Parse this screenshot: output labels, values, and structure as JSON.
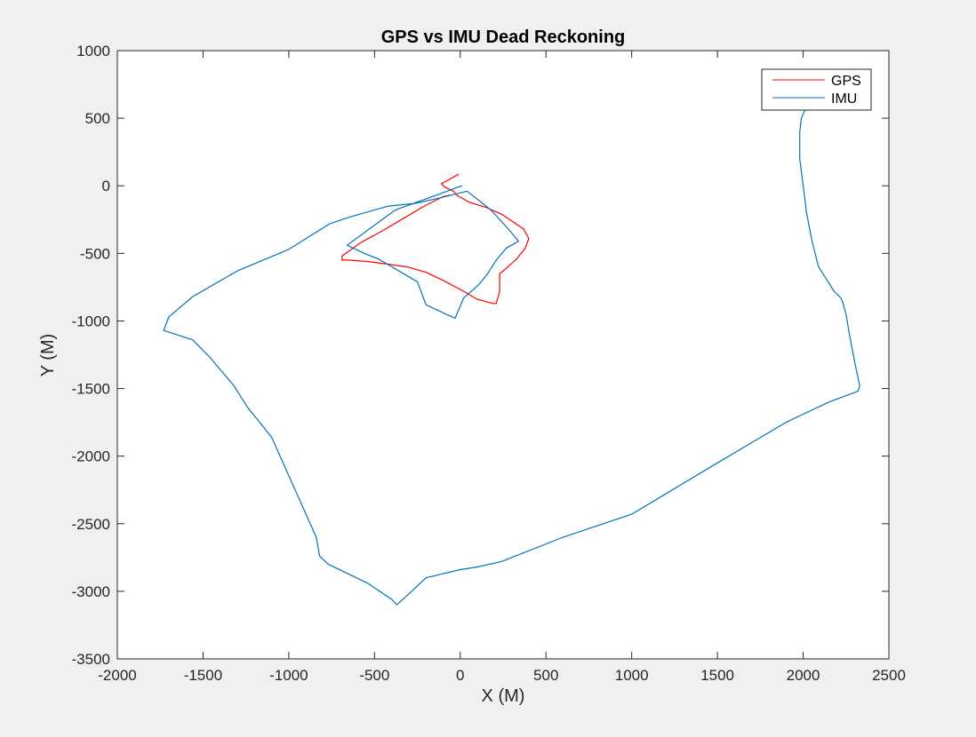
{
  "chart_data": {
    "type": "line",
    "title": "GPS vs IMU Dead Reckoning",
    "xlabel": "X (M)",
    "ylabel": "Y (M)",
    "xlim": [
      -2000,
      2500
    ],
    "ylim": [
      -3500,
      1000
    ],
    "xticks": [
      -2000,
      -1500,
      -1000,
      -500,
      0,
      500,
      1000,
      1500,
      2000,
      2500
    ],
    "yticks": [
      -3500,
      -3000,
      -2500,
      -2000,
      -1500,
      -1000,
      -500,
      0,
      500,
      1000
    ],
    "grid": false,
    "legend_position": "top-right",
    "series": [
      {
        "name": "GPS",
        "color": "#ff0000",
        "x": [
          -10,
          -110,
          -90,
          -40,
          -20,
          50,
          150,
          240,
          300,
          370,
          400,
          380,
          330,
          260,
          230,
          230,
          210,
          190,
          100,
          20,
          -100,
          -200,
          -310,
          -420,
          -540,
          -660,
          -690,
          -690,
          -580,
          -450,
          -330,
          -210,
          -100,
          -60
        ],
        "y": [
          85,
          15,
          -10,
          -40,
          -70,
          -120,
          -160,
          -210,
          -260,
          -320,
          -390,
          -460,
          -540,
          -620,
          -650,
          -780,
          -870,
          -870,
          -840,
          -780,
          -700,
          -640,
          -600,
          -580,
          -560,
          -550,
          -550,
          -520,
          -420,
          -330,
          -240,
          -150,
          -80,
          -70
        ]
      },
      {
        "name": "IMU",
        "color": "#0072bd",
        "x": [
          10,
          -120,
          -380,
          -660,
          -560,
          -480,
          -250,
          -200,
          -100,
          -30,
          20,
          110,
          160,
          210,
          270,
          340,
          280,
          180,
          40,
          -120,
          -260,
          -420,
          -640,
          -760,
          -1000,
          -1300,
          -1560,
          -1700,
          -1730,
          -1560,
          -1460,
          -1320,
          -1240,
          -1100,
          -840,
          -820,
          -770,
          -540,
          -400,
          -370,
          -300,
          -200,
          -100,
          0,
          100,
          240,
          600,
          1000,
          1500,
          1900,
          2150,
          2320,
          2330,
          2300,
          2270,
          2250,
          2230,
          2220,
          2180,
          2140,
          2090,
          2050,
          2020,
          2000,
          1980,
          1980,
          1990,
          2010
        ],
        "y": [
          0,
          -60,
          -180,
          -440,
          -500,
          -540,
          -710,
          -880,
          -940,
          -980,
          -830,
          -730,
          -650,
          -550,
          -460,
          -410,
          -320,
          -180,
          -40,
          -90,
          -130,
          -150,
          -230,
          -280,
          -470,
          -630,
          -820,
          -970,
          -1070,
          -1140,
          -1270,
          -1480,
          -1640,
          -1860,
          -2600,
          -2740,
          -2800,
          -2940,
          -3060,
          -3100,
          -3020,
          -2900,
          -2870,
          -2840,
          -2820,
          -2780,
          -2600,
          -2430,
          -2050,
          -1750,
          -1600,
          -1520,
          -1480,
          -1300,
          -1100,
          -950,
          -860,
          -830,
          -780,
          -700,
          -600,
          -400,
          -200,
          0,
          200,
          400,
          500,
          560
        ]
      }
    ]
  }
}
